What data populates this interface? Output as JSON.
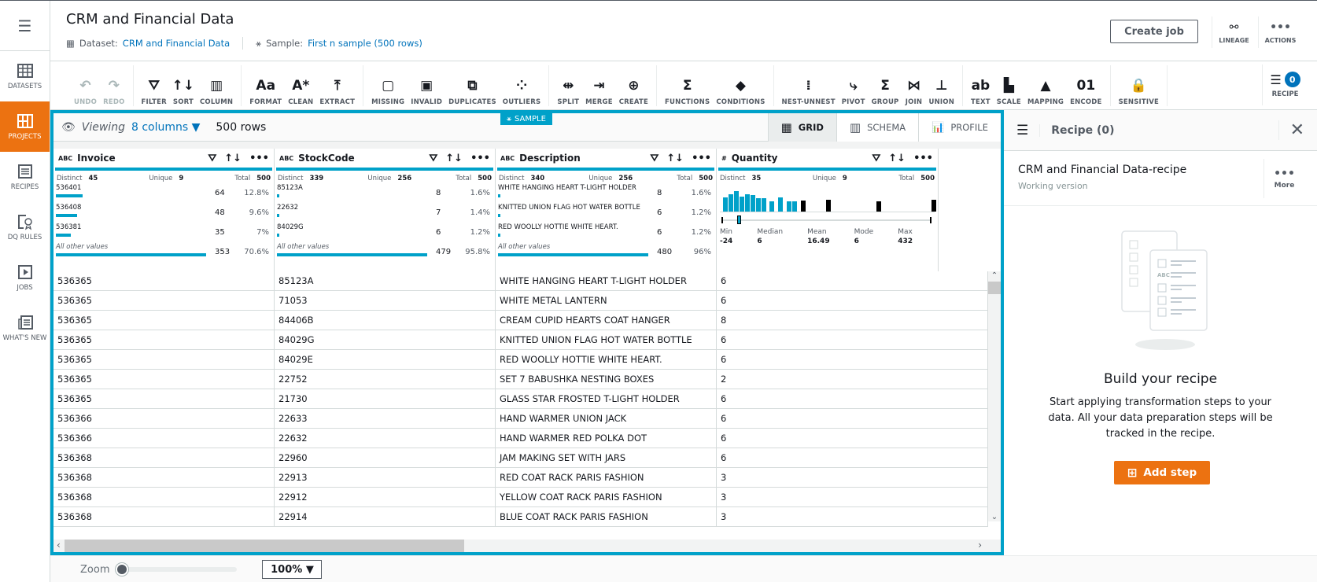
{
  "sidebar": {
    "items": [
      {
        "label": "DATASETS",
        "icon": "grid-table-icon",
        "active": false
      },
      {
        "label": "PROJECTS",
        "icon": "projects-icon",
        "active": true
      },
      {
        "label": "RECIPES",
        "icon": "recipe-list-icon",
        "active": false
      },
      {
        "label": "DQ RULES",
        "icon": "dq-rules-icon",
        "active": false
      },
      {
        "label": "JOBS",
        "icon": "play-icon",
        "active": false
      },
      {
        "label": "WHAT'S NEW",
        "icon": "newspaper-icon",
        "active": false
      }
    ]
  },
  "header": {
    "title": "CRM and Financial Data",
    "dataset_label": "Dataset:",
    "dataset_link": "CRM and Financial Data",
    "sample_label": "Sample:",
    "sample_link": "First n sample (500 rows)",
    "create_job": "Create job",
    "lineage": "LINEAGE",
    "actions": "ACTIONS"
  },
  "toolbar": {
    "groups": [
      [
        {
          "label": "UNDO",
          "glyph": "↶",
          "disabled": true
        },
        {
          "label": "REDO",
          "glyph": "↷",
          "disabled": true
        }
      ],
      [
        {
          "label": "FILTER",
          "glyph": "⛛"
        },
        {
          "label": "SORT",
          "glyph": "↑↓"
        },
        {
          "label": "COLUMN",
          "glyph": "▥"
        }
      ],
      [
        {
          "label": "FORMAT",
          "glyph": "Aa"
        },
        {
          "label": "CLEAN",
          "glyph": "A*"
        },
        {
          "label": "EXTRACT",
          "glyph": "⤒"
        }
      ],
      [
        {
          "label": "MISSING",
          "glyph": "▢"
        },
        {
          "label": "INVALID",
          "glyph": "▣"
        },
        {
          "label": "DUPLICATES",
          "glyph": "⧉"
        },
        {
          "label": "OUTLIERS",
          "glyph": "⁘"
        }
      ],
      [
        {
          "label": "SPLIT",
          "glyph": "⇹"
        },
        {
          "label": "MERGE",
          "glyph": "⇥"
        },
        {
          "label": "CREATE",
          "glyph": "⊕"
        }
      ],
      [
        {
          "label": "FUNCTIONS",
          "glyph": "Σ"
        },
        {
          "label": "CONDITIONS",
          "glyph": "◆"
        }
      ],
      [
        {
          "label": "NEST-UNNEST",
          "glyph": "⁞"
        },
        {
          "label": "PIVOT",
          "glyph": "⤷"
        },
        {
          "label": "GROUP",
          "glyph": "Σ"
        },
        {
          "label": "JOIN",
          "glyph": "⋈"
        },
        {
          "label": "UNION",
          "glyph": "⊥"
        }
      ],
      [
        {
          "label": "TEXT",
          "glyph": "ab"
        },
        {
          "label": "SCALE",
          "glyph": "▙"
        },
        {
          "label": "MAPPING",
          "glyph": "▲"
        },
        {
          "label": "ENCODE",
          "glyph": "01"
        }
      ],
      [
        {
          "label": "SENSITIVE",
          "glyph": "🔒"
        }
      ]
    ],
    "recipe_label": "RECIPE",
    "recipe_count": "0"
  },
  "viewbar": {
    "viewing": "Viewing",
    "columns": "8 columns",
    "rows": "500 rows",
    "sample_tag": "SAMPLE",
    "tabs": [
      {
        "label": "GRID",
        "active": true
      },
      {
        "label": "SCHEMA",
        "active": false
      },
      {
        "label": "PROFILE",
        "active": false
      }
    ]
  },
  "columns": [
    {
      "type": "ABC",
      "name": "Invoice",
      "distinct": "45",
      "unique": "9",
      "total": "500",
      "top": [
        {
          "v": "536401",
          "c": "64",
          "p": "12.8%",
          "w": 0.18
        },
        {
          "v": "536408",
          "c": "48",
          "p": "9.6%",
          "w": 0.14
        },
        {
          "v": "536381",
          "c": "35",
          "p": "7%",
          "w": 0.1
        }
      ],
      "other": {
        "v": "All other values",
        "c": "353",
        "p": "70.6%",
        "w": 1.0
      }
    },
    {
      "type": "ABC",
      "name": "StockCode",
      "distinct": "339",
      "unique": "256",
      "total": "500",
      "top": [
        {
          "v": "85123A",
          "c": "8",
          "p": "1.6%",
          "w": 0.01
        },
        {
          "v": "22632",
          "c": "7",
          "p": "1.4%",
          "w": 0.01
        },
        {
          "v": "84029G",
          "c": "6",
          "p": "1.2%",
          "w": 0.01
        }
      ],
      "other": {
        "v": "All other values",
        "c": "479",
        "p": "95.8%",
        "w": 1.0
      }
    },
    {
      "type": "ABC",
      "name": "Description",
      "distinct": "340",
      "unique": "256",
      "total": "500",
      "top": [
        {
          "v": "WHITE HANGING HEART T-LIGHT HOLDER",
          "c": "8",
          "p": "1.6%",
          "w": 0.01
        },
        {
          "v": "KNITTED UNION FLAG HOT WATER BOTTLE",
          "c": "6",
          "p": "1.2%",
          "w": 0.01
        },
        {
          "v": "RED WOOLLY HOTTIE WHITE HEART.",
          "c": "6",
          "p": "1.2%",
          "w": 0.01
        }
      ],
      "other": {
        "v": "All other values",
        "c": "480",
        "p": "96%",
        "w": 1.0
      }
    },
    {
      "type": "#",
      "name": "Quantity",
      "distinct": "35",
      "unique": "9",
      "total": "500",
      "min_label": "Min",
      "min": "-24",
      "median_label": "Median",
      "median": "6",
      "mean_label": "Mean",
      "mean": "16.49",
      "mode_label": "Mode",
      "mode": "6",
      "max_label": "Max",
      "max": "432"
    }
  ],
  "stat_labels": {
    "distinct": "Distinct",
    "unique": "Unique",
    "total": "Total"
  },
  "rows": [
    [
      "536365",
      "85123A",
      "WHITE HANGING HEART T-LIGHT HOLDER",
      "6"
    ],
    [
      "536365",
      "71053",
      "WHITE METAL LANTERN",
      "6"
    ],
    [
      "536365",
      "84406B",
      "CREAM CUPID HEARTS COAT HANGER",
      "8"
    ],
    [
      "536365",
      "84029G",
      "KNITTED UNION FLAG HOT WATER BOTTLE",
      "6"
    ],
    [
      "536365",
      "84029E",
      "RED WOOLLY HOTTIE WHITE HEART.",
      "6"
    ],
    [
      "536365",
      "22752",
      "SET 7 BABUSHKA NESTING BOXES",
      "2"
    ],
    [
      "536365",
      "21730",
      "GLASS STAR FROSTED T-LIGHT HOLDER",
      "6"
    ],
    [
      "536366",
      "22633",
      "HAND WARMER UNION JACK",
      "6"
    ],
    [
      "536366",
      "22632",
      "HAND WARMER RED POLKA DOT",
      "6"
    ],
    [
      "536368",
      "22960",
      "JAM MAKING SET WITH JARS",
      "6"
    ],
    [
      "536368",
      "22913",
      "RED COAT RACK PARIS FASHION",
      "3"
    ],
    [
      "536368",
      "22912",
      "YELLOW COAT RACK PARIS FASHION",
      "3"
    ],
    [
      "536368",
      "22914",
      "BLUE COAT RACK PARIS FASHION",
      "3"
    ]
  ],
  "recipe_panel": {
    "title": "Recipe (0)",
    "recipe_name": "CRM and Financial Data-recipe",
    "version": "Working version",
    "more": "More",
    "build_title": "Build your recipe",
    "build_text": "Start applying transformation steps to your data. All your data preparation steps will be tracked in the recipe.",
    "add_step": "Add step"
  },
  "zoom": {
    "label": "Zoom",
    "value": "100%"
  },
  "colors": {
    "accent": "#00a1c9",
    "orange": "#ec7211",
    "link": "#0073bb"
  }
}
